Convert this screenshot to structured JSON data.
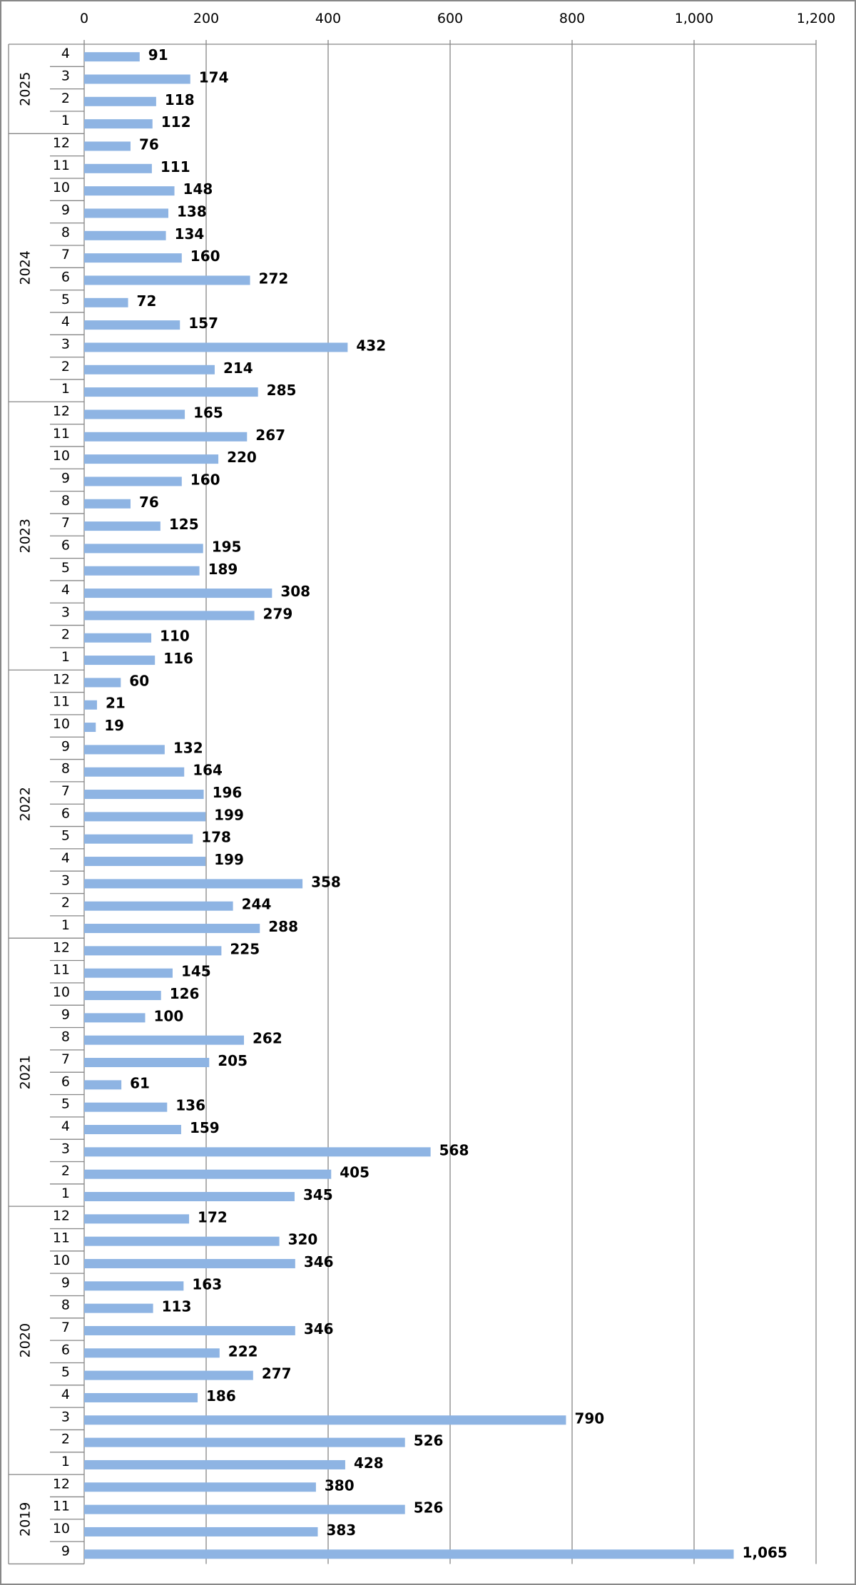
{
  "chart_data": {
    "type": "bar",
    "orientation": "horizontal",
    "xlim": [
      0,
      1200
    ],
    "xticks": [
      0,
      200,
      400,
      600,
      800,
      1000,
      1200
    ],
    "xtick_labels": [
      "0",
      "200",
      "400",
      "600",
      "800",
      "1,000",
      "1,200"
    ],
    "grid": true,
    "bar_color": "#8EB4E3",
    "grid_color": "#868686",
    "groups": [
      {
        "year": "2025",
        "months": [
          "4",
          "3",
          "2",
          "1"
        ],
        "values": [
          91,
          174,
          118,
          112
        ],
        "labels": [
          "91",
          "174",
          "118",
          "112"
        ]
      },
      {
        "year": "2024",
        "months": [
          "12",
          "11",
          "10",
          "9",
          "8",
          "7",
          "6",
          "5",
          "4",
          "3",
          "2",
          "1"
        ],
        "values": [
          76,
          111,
          148,
          138,
          134,
          160,
          272,
          72,
          157,
          432,
          214,
          285
        ],
        "labels": [
          "76",
          "111",
          "148",
          "138",
          "134",
          "160",
          "272",
          "72",
          "157",
          "432",
          "214",
          "285"
        ]
      },
      {
        "year": "2023",
        "months": [
          "12",
          "11",
          "10",
          "9",
          "8",
          "7",
          "6",
          "5",
          "4",
          "3",
          "2",
          "1"
        ],
        "values": [
          165,
          267,
          220,
          160,
          76,
          125,
          195,
          189,
          308,
          279,
          110,
          116
        ],
        "labels": [
          "165",
          "267",
          "220",
          "160",
          "76",
          "125",
          "195",
          "189",
          "308",
          "279",
          "110",
          "116"
        ]
      },
      {
        "year": "2022",
        "months": [
          "12",
          "11",
          "10",
          "9",
          "8",
          "7",
          "6",
          "5",
          "4",
          "3",
          "2",
          "1"
        ],
        "values": [
          60,
          21,
          19,
          132,
          164,
          196,
          199,
          178,
          199,
          358,
          244,
          288
        ],
        "labels": [
          "60",
          "21",
          "19",
          "132",
          "164",
          "196",
          "199",
          "178",
          "199",
          "358",
          "244",
          "288"
        ]
      },
      {
        "year": "2021",
        "months": [
          "12",
          "11",
          "10",
          "9",
          "8",
          "7",
          "6",
          "5",
          "4",
          "3",
          "2",
          "1"
        ],
        "values": [
          225,
          145,
          126,
          100,
          262,
          205,
          61,
          136,
          159,
          568,
          405,
          345
        ],
        "labels": [
          "225",
          "145",
          "126",
          "100",
          "262",
          "205",
          "61",
          "136",
          "159",
          "568",
          "405",
          "345"
        ]
      },
      {
        "year": "2020",
        "months": [
          "12",
          "11",
          "10",
          "9",
          "8",
          "7",
          "6",
          "5",
          "4",
          "3",
          "2",
          "1"
        ],
        "values": [
          172,
          320,
          346,
          163,
          113,
          346,
          222,
          277,
          186,
          790,
          526,
          428
        ],
        "labels": [
          "172",
          "320",
          "346",
          "163",
          "113",
          "346",
          "222",
          "277",
          "186",
          "790",
          "526",
          "428"
        ]
      },
      {
        "year": "2019",
        "months": [
          "12",
          "11",
          "10",
          "9"
        ],
        "values": [
          380,
          526,
          383,
          1065
        ],
        "labels": [
          "380",
          "526",
          "383",
          "1,065"
        ]
      }
    ]
  }
}
